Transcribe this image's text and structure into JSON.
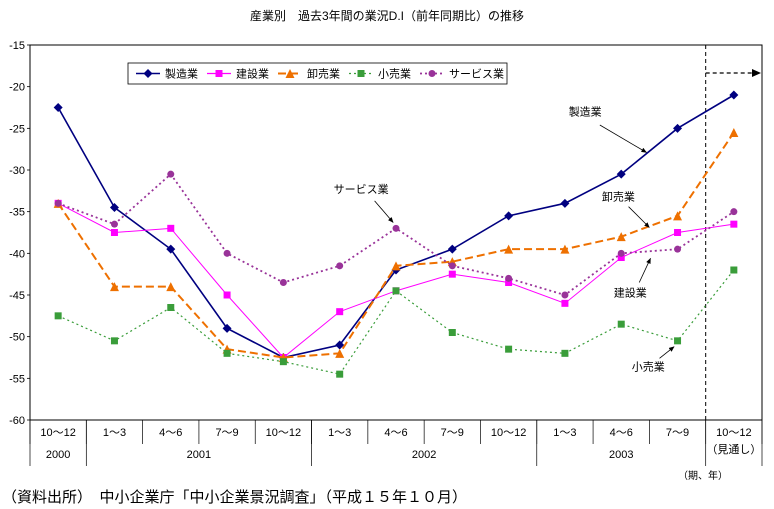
{
  "source_note": "（資料出所）　中小企業庁「中小企業景況調査」（平成１５年１０月）",
  "chart_data": {
    "type": "line",
    "title": "産業別　過去3年間の業況D.I（前年同期比）の推移",
    "ylim": [
      -60,
      -15
    ],
    "yticks": [
      -15,
      -20,
      -25,
      -30,
      -35,
      -40,
      -45,
      -50,
      -55,
      -60
    ],
    "grid": false,
    "legend_position": "top-inside",
    "categories": [
      "10～12",
      "1～3",
      "4～6",
      "7～9",
      "10～12",
      "1～3",
      "4～6",
      "7～9",
      "10～12",
      "1～3",
      "4～6",
      "7～9",
      "10～12"
    ],
    "forecast_note": "（見通し）",
    "axis_note": "（期、年）",
    "year_groups": [
      {
        "label": "2000",
        "span": [
          0,
          0
        ]
      },
      {
        "label": "2001",
        "span": [
          1,
          4
        ]
      },
      {
        "label": "2002",
        "span": [
          5,
          8
        ]
      },
      {
        "label": "2003",
        "span": [
          9,
          11
        ]
      }
    ],
    "series": [
      {
        "name": "製造業",
        "color": "#000080",
        "marker": "diamond",
        "dash": "solid",
        "width": 1.6,
        "msize": 4.5,
        "values": [
          -22.5,
          -34.5,
          -39.5,
          -49,
          -52.5,
          -51,
          -42,
          -39.5,
          -35.5,
          -34,
          -30.5,
          -25,
          -21
        ]
      },
      {
        "name": "建設業",
        "color": "#FF00FF",
        "marker": "square",
        "dash": "solid",
        "width": 1,
        "msize": 3.5,
        "values": [
          -34,
          -37.5,
          -37,
          -45,
          -52.5,
          -47,
          -44.5,
          -42.5,
          -43.5,
          -46,
          -40.5,
          -37.5,
          -36.5
        ]
      },
      {
        "name": "卸売業",
        "color": "#EE7000",
        "marker": "triangle",
        "dash": "dashed",
        "width": 2,
        "msize": 4.5,
        "values": [
          -34,
          -44,
          -44,
          -51.5,
          -52.5,
          -52,
          -41.5,
          -41,
          -39.5,
          -39.5,
          -38,
          -35.5,
          -25.5
        ]
      },
      {
        "name": "小売業",
        "color": "#3A9D3A",
        "marker": "square",
        "dash": "dotted",
        "width": 1.2,
        "msize": 3.5,
        "values": [
          -47.5,
          -50.5,
          -46.5,
          -52,
          -53,
          -54.5,
          -44.5,
          -49.5,
          -51.5,
          -52,
          -48.5,
          -50.5,
          -42
        ]
      },
      {
        "name": "サービス業",
        "color": "#993399",
        "marker": "circle",
        "dash": "dotted",
        "width": 1.8,
        "msize": 4,
        "values": [
          -34,
          -36.5,
          -30.5,
          -40,
          -43.5,
          -41.5,
          -37,
          -41.5,
          -43,
          -45,
          -40,
          -39.5,
          -35
        ]
      }
    ],
    "annotations": [
      {
        "text": "製造業",
        "label": [
          9.36,
          -23.0
        ],
        "from": [
          9.62,
          -24.6
        ],
        "to": [
          10.45,
          -27.9
        ]
      },
      {
        "text": "卸売業",
        "label": [
          9.95,
          -33.2
        ],
        "from": [
          10.13,
          -34.4
        ],
        "to": [
          10.5,
          -36.9
        ]
      },
      {
        "text": "サービス業",
        "label": [
          5.38,
          -32.3
        ],
        "from": [
          5.62,
          -33.7
        ],
        "to": [
          5.95,
          -36.3
        ]
      },
      {
        "text": "建設業",
        "label": [
          10.16,
          -44.7
        ],
        "from": [
          10.32,
          -43.5
        ],
        "to": [
          10.52,
          -40.6
        ]
      },
      {
        "text": "小売業",
        "label": [
          10.48,
          -53.6
        ],
        "from": [
          10.68,
          -52.6
        ],
        "to": [
          10.94,
          -51.2
        ]
      }
    ]
  }
}
